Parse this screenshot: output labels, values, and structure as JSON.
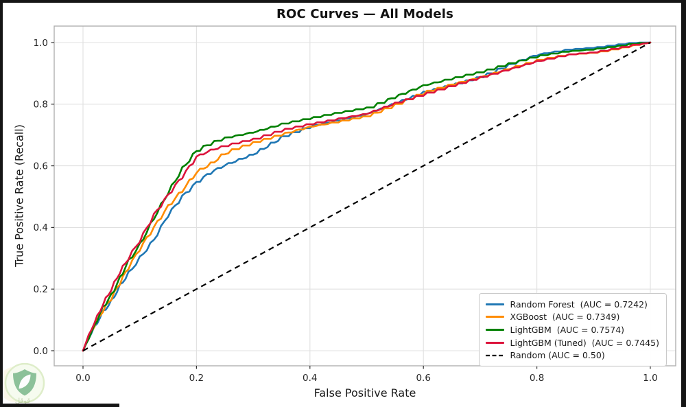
{
  "chart_data": {
    "type": "line",
    "title": "ROC Curves — All Models",
    "xlabel": "False Positive Rate",
    "ylabel": "True Positive Rate (Recall)",
    "xlim": [
      -0.05,
      1.05
    ],
    "ylim": [
      -0.05,
      1.05
    ],
    "grid": true,
    "legend_position": "lower right",
    "grid_color": "#e0e0e0",
    "frame_color": "#b0b0b0",
    "background": "#ffffff",
    "x_ticks": {
      "values": [
        0.0,
        0.2,
        0.4,
        0.6,
        0.8,
        1.0
      ],
      "labels": [
        "0.0",
        "0.2",
        "0.4",
        "0.6",
        "0.8",
        "1.0"
      ]
    },
    "y_ticks": {
      "values": [
        0.0,
        0.2,
        0.4,
        0.6,
        0.8,
        1.0
      ],
      "labels": [
        "0.0",
        "0.2",
        "0.4",
        "0.6",
        "0.8",
        "1.0"
      ]
    },
    "series": [
      {
        "name": "Random Forest",
        "auc": 0.7242,
        "label": "Random Forest  (AUC = 0.7242)",
        "color": "#1f77b4",
        "style": "solid",
        "x": [
          0,
          0.01,
          0.02,
          0.035,
          0.05,
          0.065,
          0.08,
          0.1,
          0.125,
          0.15,
          0.175,
          0.2,
          0.225,
          0.25,
          0.3,
          0.35,
          0.4,
          0.45,
          0.5,
          0.55,
          0.6,
          0.65,
          0.7,
          0.75,
          0.8,
          0.85,
          0.9,
          0.95,
          1.0
        ],
        "y": [
          0,
          0.04,
          0.075,
          0.125,
          0.16,
          0.21,
          0.25,
          0.3,
          0.36,
          0.44,
          0.5,
          0.545,
          0.578,
          0.6,
          0.635,
          0.69,
          0.725,
          0.745,
          0.765,
          0.8,
          0.835,
          0.858,
          0.885,
          0.925,
          0.958,
          0.972,
          0.978,
          0.99,
          1.0
        ]
      },
      {
        "name": "XGBoost",
        "auc": 0.7349,
        "label": "XGBoost  (AUC = 0.7349)",
        "color": "#ff8c00",
        "style": "solid",
        "x": [
          0,
          0.01,
          0.02,
          0.035,
          0.05,
          0.065,
          0.08,
          0.1,
          0.125,
          0.15,
          0.175,
          0.2,
          0.225,
          0.25,
          0.3,
          0.35,
          0.4,
          0.45,
          0.5,
          0.55,
          0.6,
          0.65,
          0.7,
          0.75,
          0.8,
          0.85,
          0.9,
          0.95,
          1.0
        ],
        "y": [
          0,
          0.045,
          0.08,
          0.13,
          0.17,
          0.22,
          0.27,
          0.33,
          0.4,
          0.468,
          0.52,
          0.578,
          0.605,
          0.64,
          0.672,
          0.7,
          0.724,
          0.74,
          0.757,
          0.795,
          0.835,
          0.862,
          0.884,
          0.912,
          0.938,
          0.955,
          0.962,
          0.98,
          1.0
        ]
      },
      {
        "name": "LightGBM",
        "auc": 0.7574,
        "label": "LightGBM  (AUC = 0.7574)",
        "color": "#008000",
        "style": "solid",
        "x": [
          0,
          0.01,
          0.02,
          0.035,
          0.05,
          0.065,
          0.08,
          0.1,
          0.125,
          0.15,
          0.175,
          0.2,
          0.225,
          0.25,
          0.3,
          0.35,
          0.4,
          0.45,
          0.5,
          0.55,
          0.6,
          0.65,
          0.7,
          0.75,
          0.8,
          0.85,
          0.9,
          0.95,
          1.0
        ],
        "y": [
          0,
          0.04,
          0.08,
          0.14,
          0.18,
          0.235,
          0.29,
          0.343,
          0.43,
          0.513,
          0.59,
          0.648,
          0.672,
          0.688,
          0.706,
          0.732,
          0.75,
          0.768,
          0.784,
          0.822,
          0.858,
          0.88,
          0.9,
          0.927,
          0.952,
          0.968,
          0.975,
          0.986,
          1.0
        ]
      },
      {
        "name": "LightGBM (Tuned)",
        "auc": 0.7445,
        "label": "LightGBM (Tuned)  (AUC = 0.7445)",
        "color": "#dc143c",
        "style": "solid",
        "x": [
          0,
          0.01,
          0.02,
          0.035,
          0.05,
          0.065,
          0.08,
          0.1,
          0.125,
          0.15,
          0.175,
          0.2,
          0.225,
          0.25,
          0.3,
          0.35,
          0.4,
          0.45,
          0.5,
          0.55,
          0.6,
          0.65,
          0.7,
          0.75,
          0.8,
          0.85,
          0.9,
          0.95,
          1.0
        ],
        "y": [
          0,
          0.05,
          0.09,
          0.15,
          0.2,
          0.255,
          0.3,
          0.357,
          0.44,
          0.505,
          0.565,
          0.628,
          0.648,
          0.662,
          0.682,
          0.712,
          0.732,
          0.75,
          0.766,
          0.8,
          0.828,
          0.856,
          0.884,
          0.91,
          0.936,
          0.955,
          0.963,
          0.98,
          1.0
        ]
      },
      {
        "name": "Random",
        "auc": 0.5,
        "label": "Random (AUC = 0.50)",
        "color": "#000000",
        "style": "dashed",
        "x": [
          0,
          1
        ],
        "y": [
          0,
          1
        ]
      }
    ]
  },
  "watermark": {
    "text": "قوقل"
  }
}
